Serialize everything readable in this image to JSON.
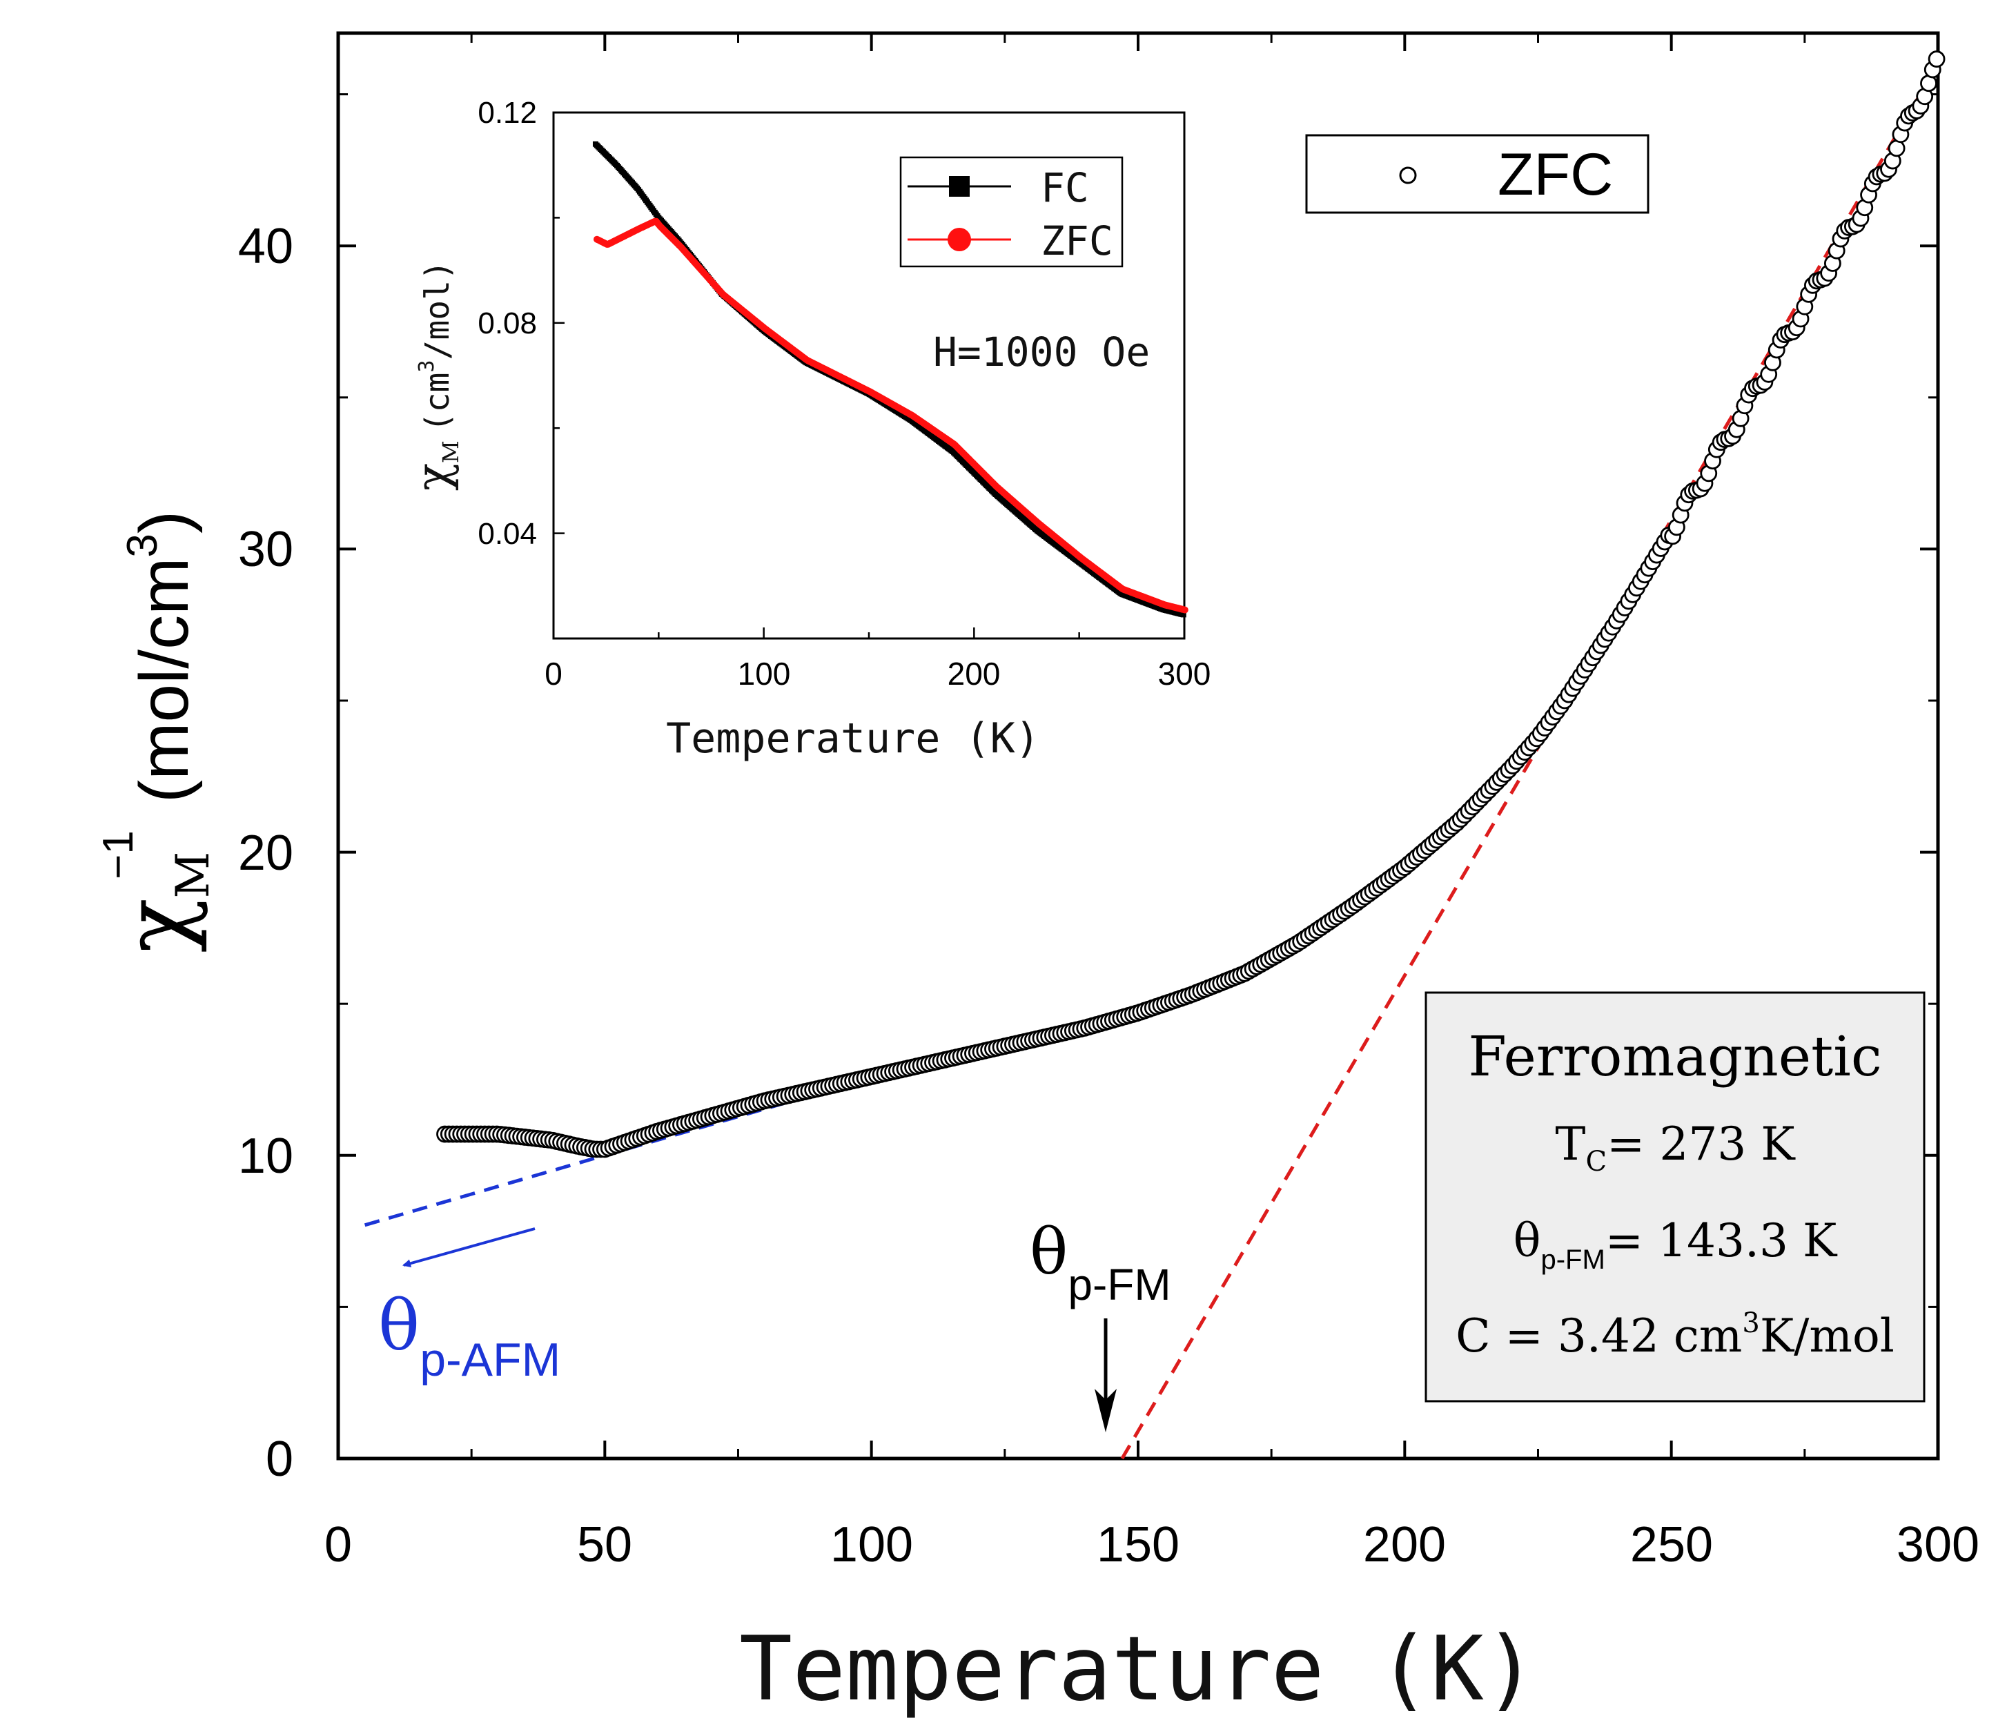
{
  "chart_data": [
    {
      "type": "scatter",
      "title": "",
      "xlabel": "Temperature (K)",
      "ylabel": "χ_M^-1 (mol/cm^3)",
      "ylabel_symbol": "χ",
      "ylabel_sub": "M",
      "ylabel_sup": "−1",
      "ylabel_units_a": "(mol/cm",
      "ylabel_units_sup": "3",
      "ylabel_units_b": ")",
      "xlim": [
        0,
        300
      ],
      "ylim": [
        0,
        47
      ],
      "xticks": [
        "0",
        "50",
        "100",
        "150",
        "200",
        "250",
        "300"
      ],
      "yticks": [
        "0",
        "10",
        "20",
        "30",
        "40"
      ],
      "legend": {
        "position": "top-right",
        "entries": [
          {
            "name": "ZFC",
            "marker": "open-circle"
          }
        ]
      },
      "series": [
        {
          "name": "ZFC",
          "x": [
            20,
            25,
            30,
            35,
            40,
            45,
            48,
            50,
            55,
            60,
            70,
            80,
            90,
            100,
            110,
            120,
            130,
            140,
            150,
            160,
            170,
            180,
            190,
            200,
            210,
            220,
            225,
            230,
            240,
            250,
            260,
            270,
            280,
            290,
            300
          ],
          "y": [
            10.7,
            10.7,
            10.7,
            10.6,
            10.5,
            10.3,
            10.2,
            10.2,
            10.5,
            10.8,
            11.3,
            11.8,
            12.2,
            12.6,
            13.0,
            13.4,
            13.8,
            14.2,
            14.7,
            15.3,
            16.0,
            17.0,
            18.2,
            19.5,
            21.0,
            22.8,
            23.8,
            25.0,
            27.7,
            30.6,
            33.5,
            36.5,
            39.5,
            42.5,
            46.0
          ]
        }
      ],
      "fits": [
        {
          "name": "FM fit",
          "color": "#dd1c1c",
          "x": [
            147,
            300
          ],
          "y": [
            0,
            46
          ]
        },
        {
          "name": "AFM fit",
          "color": "#1b35d6",
          "x": [
            5,
            95
          ],
          "y": [
            7.7,
            12.3
          ]
        }
      ],
      "annotations": {
        "theta_fm_symbol": "θ",
        "theta_fm_sub": "p-FM",
        "theta_afm_symbol": "θ",
        "theta_afm_sub": "p-AFM",
        "box_title": "Ferromagnetic",
        "tc_prefix": "T",
        "tc_sub": "C",
        "tc_value": "= 273  K",
        "theta_value": "= 143.3 K",
        "c_prefix": "C = 3.42 cm",
        "c_sup": "3",
        "c_suffix": "K/mol"
      }
    },
    {
      "type": "line",
      "title": "",
      "xlabel": "Temperature (K)",
      "ylabel": "χ_M (cm^3/mol)",
      "ylabel_symbol": "χ",
      "ylabel_sub": "M",
      "ylabel_units_a": "(cm",
      "ylabel_units_sup": "3",
      "ylabel_units_b": "/mol)",
      "xlim": [
        0,
        300
      ],
      "ylim": [
        0.02,
        0.12
      ],
      "xticks": [
        "0",
        "100",
        "200",
        "300"
      ],
      "yticks": [
        "0.12",
        "0.08",
        "0.04"
      ],
      "field_label": "H=1000 Oe",
      "legend": {
        "position": "top-right",
        "entries": [
          {
            "name": "FC",
            "marker": "filled-square",
            "color": "#000000"
          },
          {
            "name": "ZFC",
            "marker": "filled-circle",
            "color": "#ff1010"
          }
        ]
      },
      "series": [
        {
          "name": "FC",
          "color": "#000000",
          "x": [
            20,
            30,
            40,
            50,
            60,
            80,
            100,
            120,
            150,
            170,
            190,
            210,
            230,
            250,
            270,
            290,
            300
          ],
          "y": [
            0.114,
            0.11,
            0.1055,
            0.1,
            0.0955,
            0.0855,
            0.0785,
            0.0725,
            0.0665,
            0.0615,
            0.0555,
            0.0475,
            0.0405,
            0.0345,
            0.0285,
            0.0255,
            0.0245
          ]
        },
        {
          "name": "ZFC",
          "color": "#ff1010",
          "x": [
            20,
            25,
            30,
            40,
            48,
            50,
            60,
            80,
            100,
            120,
            150,
            170,
            190,
            210,
            230,
            250,
            270,
            290,
            300
          ],
          "y": [
            0.0955,
            0.0945,
            0.0955,
            0.0975,
            0.099,
            0.098,
            0.094,
            0.085,
            0.0785,
            0.0725,
            0.0665,
            0.062,
            0.0565,
            0.0485,
            0.0415,
            0.035,
            0.029,
            0.026,
            0.025
          ]
        }
      ]
    }
  ]
}
